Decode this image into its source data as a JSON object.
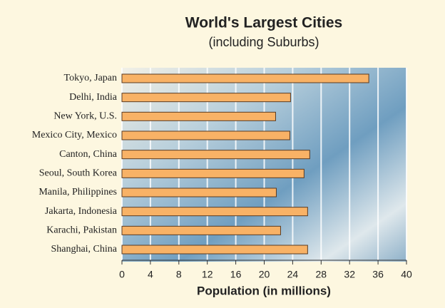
{
  "chart_data": {
    "type": "barh",
    "title": "World's Largest Cities",
    "subtitle": "(including Suburbs)",
    "x_label": "Population (in millions)",
    "categories": [
      "Tokyo, Japan",
      "Delhi, India",
      "New York, U.S.",
      "Mexico City, Mexico",
      "Canton, China",
      "Seoul, South Korea",
      "Manila, Philippines",
      "Jakarta, Indonesia",
      "Karachi, Pakistan",
      "Shanghai, China"
    ],
    "values": [
      34.7,
      23.7,
      21.6,
      23.6,
      26.4,
      25.6,
      21.7,
      26.1,
      22.3,
      26.1
    ],
    "color": "#f8b266",
    "xlim": [
      0,
      40
    ],
    "xticks": [
      0,
      4,
      8,
      12,
      16,
      20,
      24,
      28,
      32,
      36,
      40
    ],
    "grid": true
  }
}
